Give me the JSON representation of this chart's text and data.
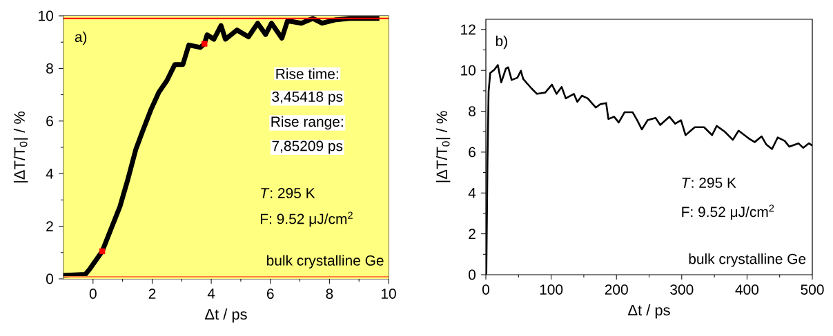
{
  "chart_data": [
    {
      "type": "line",
      "xlabel": "Δt / ps",
      "ylabel": "|ΔT/T$_{0}$| / %",
      "xlim": [
        -1,
        10
      ],
      "ylim": [
        0,
        10
      ],
      "xticks": [
        0,
        2,
        4,
        6,
        8,
        10
      ],
      "yticks": [
        0,
        2,
        4,
        6,
        8,
        10
      ],
      "grid": false,
      "bands": [
        {
          "axis": "y",
          "from": 0,
          "to": 10,
          "color": "#ffff80"
        }
      ],
      "ref_lines": [
        {
          "axis": "y",
          "value": 9.9,
          "color": "#ff0000"
        },
        {
          "axis": "y",
          "value": 0.08,
          "color": "#ff8040"
        }
      ],
      "series": [
        {
          "color": "#000000",
          "marker": "none",
          "x": [
            -1,
            -0.26,
            -0.1,
            0.31,
            0.6,
            0.91,
            1.18,
            1.45,
            1.68,
            1.95,
            2.23,
            2.5,
            2.77,
            3.04,
            3.24,
            3.63,
            3.77,
            3.86,
            4.09,
            4.33,
            4.48,
            4.87,
            5.26,
            5.57,
            5.84,
            6.04,
            6.39,
            6.58,
            7.05,
            7.44,
            7.75,
            8.22,
            8.68,
            9.18,
            9.69
          ],
          "values": [
            0.13,
            0.17,
            0.39,
            1.05,
            1.87,
            2.75,
            3.79,
            4.93,
            5.62,
            6.41,
            7.1,
            7.54,
            8.15,
            8.15,
            8.89,
            8.8,
            8.94,
            9.28,
            9.11,
            9.63,
            9.11,
            9.46,
            9.2,
            9.72,
            9.29,
            9.72,
            9.15,
            9.81,
            9.72,
            9.9,
            9.72,
            9.85,
            9.9,
            9.9,
            9.9
          ]
        },
        {
          "type": "scatter",
          "color": "#ff0000",
          "marker": "square",
          "x": [
            0.31,
            3.77
          ],
          "values": [
            1.05,
            8.94
          ]
        }
      ],
      "annotations": [
        "a)",
        "Rise time:",
        "3,45418 ps",
        "Rise range:",
        "7,85209 ps",
        "*T*: 295 K",
        "F: 9.52 μJ/cm$^{2}$",
        "bulk crystalline Ge"
      ]
    },
    {
      "type": "line",
      "xlabel": "Δt / ps",
      "ylabel": "|ΔT/T$_{0}$| / %",
      "xlim": [
        0,
        500
      ],
      "ylim": [
        0,
        12.5
      ],
      "xticks": [
        0,
        100,
        200,
        300,
        400,
        500
      ],
      "yticks": [
        0,
        2,
        4,
        6,
        8,
        10,
        12
      ],
      "grid": false,
      "series": [
        {
          "color": "#000000",
          "marker": "none",
          "x": [
            0.7,
            2.5,
            4.2,
            6.7,
            13,
            18.3,
            23.6,
            30.7,
            34.2,
            39.5,
            48.3,
            53.6,
            57.2,
            69.5,
            78.3,
            90.7,
            101.3,
            108.3,
            116.1,
            122.4,
            134.8,
            140.1,
            147.1,
            156,
            168.3,
            175.4,
            184.2,
            187.7,
            196.5,
            203.5,
            212.4,
            224.8,
            231.8,
            238.9,
            247.7,
            260,
            267.1,
            281.2,
            290,
            298.9,
            305.9,
            320,
            334.2,
            346.5,
            353.6,
            365.9,
            378.3,
            387.1,
            403,
            411.8,
            422.4,
            429.4,
            438.3,
            447.1,
            457.7,
            464.7,
            478.8,
            485.9,
            494.7,
            500
          ],
          "values": [
            0.02,
            5.6,
            8.97,
            9.87,
            10.03,
            10.26,
            9.41,
            10.09,
            10.15,
            9.53,
            9.64,
            9.98,
            9.58,
            9.13,
            8.85,
            8.91,
            9.3,
            8.85,
            9.19,
            8.63,
            8.85,
            8.46,
            8.76,
            8.63,
            8.18,
            8.35,
            8.4,
            7.62,
            7.73,
            7.45,
            7.95,
            7.95,
            7.56,
            7.11,
            7.56,
            7.67,
            7.33,
            7.73,
            7.39,
            7.56,
            6.83,
            7.22,
            7.22,
            6.83,
            7.28,
            7.0,
            6.6,
            7.05,
            6.66,
            6.49,
            6.77,
            6.38,
            6.15,
            6.72,
            6.55,
            6.27,
            6.43,
            6.21,
            6.43,
            6.32
          ]
        }
      ],
      "annotations": [
        "b)",
        "*T*: 295 K",
        "F: 9.52 μJ/cm$^{2}$",
        "bulk crystalline Ge"
      ]
    }
  ]
}
